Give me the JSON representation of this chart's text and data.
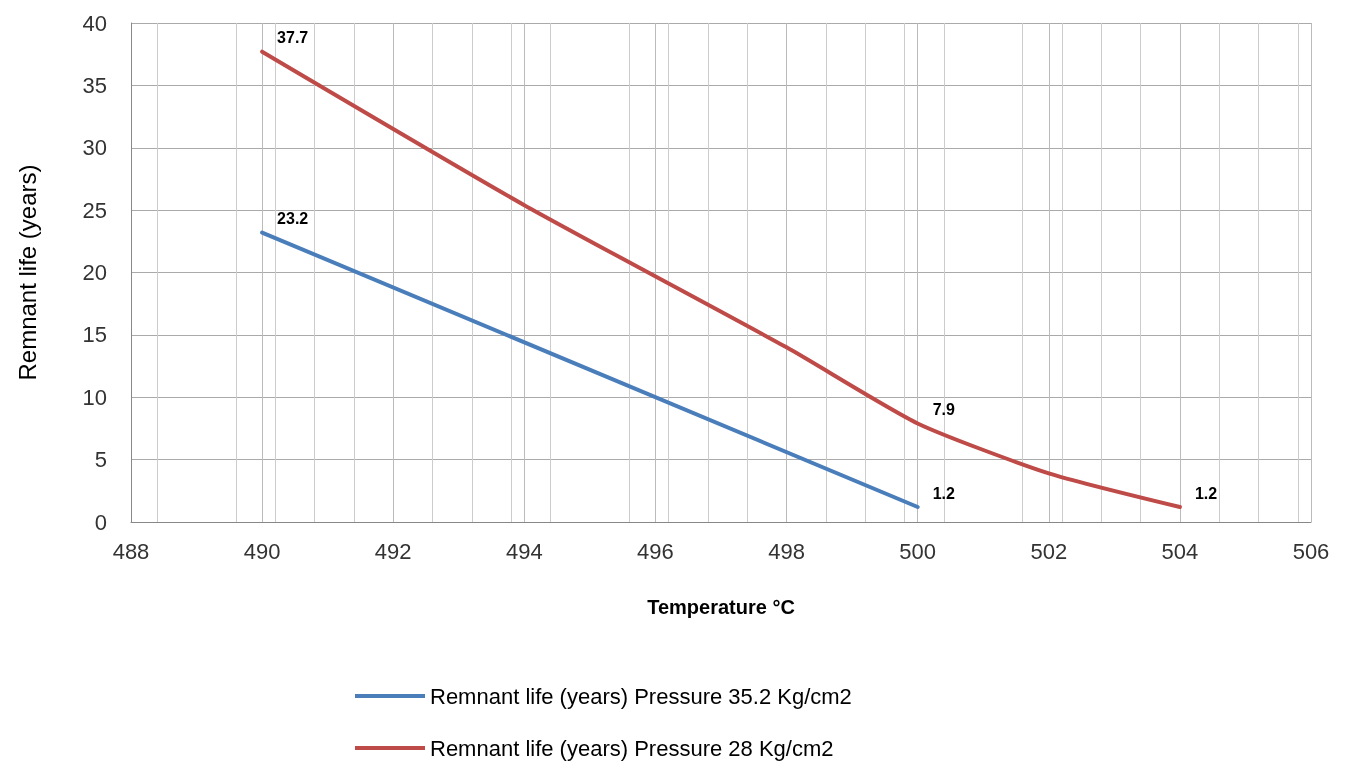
{
  "chart_data": {
    "type": "line",
    "xlabel": "Temperature °C",
    "ylabel": "Remnant life (years)",
    "xlim": [
      488,
      506
    ],
    "xticks": [
      488,
      490,
      492,
      494,
      496,
      498,
      500,
      502,
      504,
      506
    ],
    "ylim": [
      0,
      40
    ],
    "yticks": [
      0,
      5,
      10,
      15,
      20,
      25,
      30,
      35,
      40
    ],
    "grid": true,
    "legend": "bottom",
    "marker": "none",
    "line_style": "solid",
    "series": [
      {
        "name": "Remnant life (years) Pressure 35.2 Kg/cm2",
        "color": "#4a7ebb",
        "x": [
          490,
          500
        ],
        "values": [
          23.2,
          1.2
        ],
        "value_labels": [
          "23.2",
          "1.2"
        ]
      },
      {
        "name": "Remnant life (years) Pressure 28 Kg/cm2",
        "color": "#be4b48",
        "x": [
          490,
          494,
          498,
          500,
          502,
          504
        ],
        "values": [
          37.7,
          25.4,
          14.0,
          7.9,
          3.9,
          1.2
        ],
        "value_labels": [
          "37.7",
          null,
          null,
          "7.9",
          null,
          "1.2"
        ]
      }
    ]
  }
}
